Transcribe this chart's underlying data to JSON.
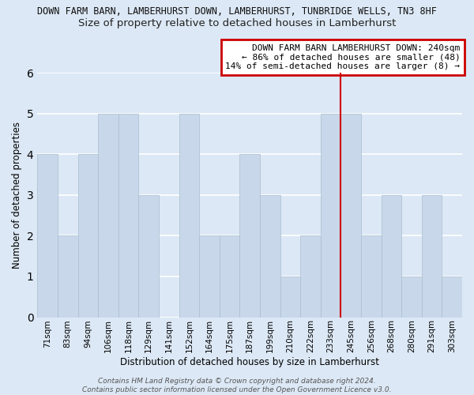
{
  "title_main": "DOWN FARM BARN, LAMBERHURST DOWN, LAMBERHURST, TUNBRIDGE WELLS, TN3 8HF",
  "title_sub": "Size of property relative to detached houses in Lamberhurst",
  "xlabel": "Distribution of detached houses by size in Lamberhurst",
  "ylabel": "Number of detached properties",
  "categories": [
    "71sqm",
    "83sqm",
    "94sqm",
    "106sqm",
    "118sqm",
    "129sqm",
    "141sqm",
    "152sqm",
    "164sqm",
    "175sqm",
    "187sqm",
    "199sqm",
    "210sqm",
    "222sqm",
    "233sqm",
    "245sqm",
    "256sqm",
    "268sqm",
    "280sqm",
    "291sqm",
    "303sqm"
  ],
  "values": [
    4,
    2,
    4,
    5,
    5,
    3,
    0,
    5,
    2,
    2,
    4,
    3,
    1,
    2,
    5,
    5,
    2,
    3,
    1,
    3,
    1
  ],
  "bar_color_normal": "#c8d8ea",
  "bar_edge_color": "#aabdce",
  "highlight_line_color": "#cc0000",
  "highlight_index": 14,
  "ylim": [
    0,
    6
  ],
  "yticks": [
    0,
    1,
    2,
    3,
    4,
    5,
    6
  ],
  "annotation_line1": "DOWN FARM BARN LAMBERHURST DOWN: 240sqm",
  "annotation_line2": "← 86% of detached houses are smaller (48)",
  "annotation_line3": "14% of semi-detached houses are larger (8) →",
  "footer1": "Contains HM Land Registry data © Crown copyright and database right 2024.",
  "footer2": "Contains public sector information licensed under the Open Government Licence v3.0.",
  "background_color": "#dce8f5",
  "grid_color": "#ffffff",
  "axes_bg_color": "#dce8f5",
  "title_main_fontsize": 8.5,
  "title_sub_fontsize": 9.5,
  "xlabel_fontsize": 8.5,
  "ylabel_fontsize": 8.5,
  "tick_fontsize": 7.5,
  "ann_fontsize": 8.0,
  "footer_fontsize": 6.5
}
